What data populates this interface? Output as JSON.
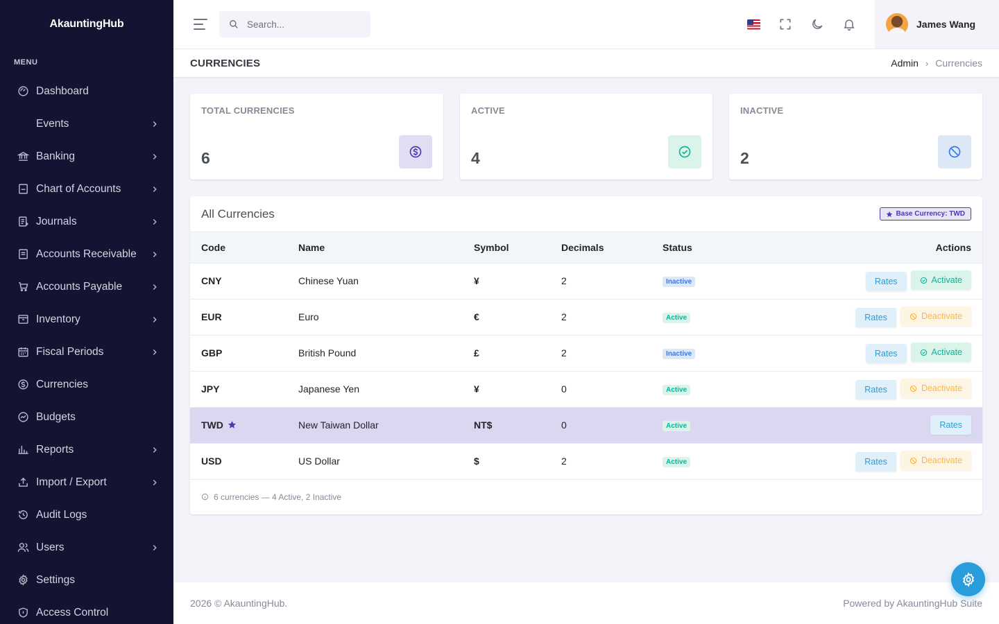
{
  "brand": "AkauntingHub",
  "sidebar": {
    "menu_title": "MENU",
    "items": [
      {
        "label": "Dashboard",
        "icon": "dashboard-icon",
        "chevron": false
      },
      {
        "label": "Events",
        "icon": "",
        "chevron": true
      },
      {
        "label": "Banking",
        "icon": "bank-icon",
        "chevron": true
      },
      {
        "label": "Chart of Accounts",
        "icon": "ledger-icon",
        "chevron": true
      },
      {
        "label": "Journals",
        "icon": "journal-icon",
        "chevron": true
      },
      {
        "label": "Accounts Receivable",
        "icon": "receivable-icon",
        "chevron": true
      },
      {
        "label": "Accounts Payable",
        "icon": "cart-icon",
        "chevron": true
      },
      {
        "label": "Inventory",
        "icon": "inventory-icon",
        "chevron": true
      },
      {
        "label": "Fiscal Periods",
        "icon": "calendar-icon",
        "chevron": true
      },
      {
        "label": "Currencies",
        "icon": "currency-icon",
        "chevron": false
      },
      {
        "label": "Budgets",
        "icon": "budget-icon",
        "chevron": false
      },
      {
        "label": "Reports",
        "icon": "bar-chart-icon",
        "chevron": true
      },
      {
        "label": "Import / Export",
        "icon": "upload-icon",
        "chevron": true
      },
      {
        "label": "Audit Logs",
        "icon": "history-icon",
        "chevron": false
      },
      {
        "label": "Users",
        "icon": "users-icon",
        "chevron": true
      },
      {
        "label": "Settings",
        "icon": "gear-icon",
        "chevron": false
      },
      {
        "label": "Access Control",
        "icon": "shield-icon",
        "chevron": false
      }
    ]
  },
  "header": {
    "search_placeholder": "Search...",
    "user_name": "James Wang"
  },
  "page": {
    "title": "CURRENCIES",
    "breadcrumb": [
      "Admin",
      "Currencies"
    ]
  },
  "stats": [
    {
      "label": "TOTAL CURRENCIES",
      "value": "6",
      "icon": "dollar-circle-icon",
      "bg": "#e2ddf3",
      "color": "#4b38b3"
    },
    {
      "label": "ACTIVE",
      "value": "4",
      "icon": "check-circle-icon",
      "bg": "#daf4e9",
      "color": "#0ab39c"
    },
    {
      "label": "INACTIVE",
      "value": "2",
      "icon": "ban-icon",
      "bg": "#dde8f6",
      "color": "#3577f1"
    }
  ],
  "table": {
    "title": "All Currencies",
    "base_badge": "Base Currency: TWD",
    "columns": [
      "Code",
      "Name",
      "Symbol",
      "Decimals",
      "Status",
      "Actions"
    ],
    "rows": [
      {
        "code": "CNY",
        "name": "Chinese Yuan",
        "symbol": "¥",
        "decimals": "2",
        "status": "Inactive",
        "base": false,
        "actions": [
          "Rates",
          "Activate"
        ]
      },
      {
        "code": "EUR",
        "name": "Euro",
        "symbol": "€",
        "decimals": "2",
        "status": "Active",
        "base": false,
        "actions": [
          "Rates",
          "Deactivate"
        ]
      },
      {
        "code": "GBP",
        "name": "British Pound",
        "symbol": "£",
        "decimals": "2",
        "status": "Inactive",
        "base": false,
        "actions": [
          "Rates",
          "Activate"
        ]
      },
      {
        "code": "JPY",
        "name": "Japanese Yen",
        "symbol": "¥",
        "decimals": "0",
        "status": "Active",
        "base": false,
        "actions": [
          "Rates",
          "Deactivate"
        ]
      },
      {
        "code": "TWD",
        "name": "New Taiwan Dollar",
        "symbol": "NT$",
        "decimals": "0",
        "status": "Active",
        "base": true,
        "actions": [
          "Rates"
        ]
      },
      {
        "code": "USD",
        "name": "US Dollar",
        "symbol": "$",
        "decimals": "2",
        "status": "Active",
        "base": false,
        "actions": [
          "Rates",
          "Deactivate"
        ]
      }
    ],
    "footnote": "6 currencies — 4 Active, 2 Inactive"
  },
  "footer": {
    "left": "2026 © AkauntingHub.",
    "right": "Powered by AkauntingHub Suite"
  }
}
